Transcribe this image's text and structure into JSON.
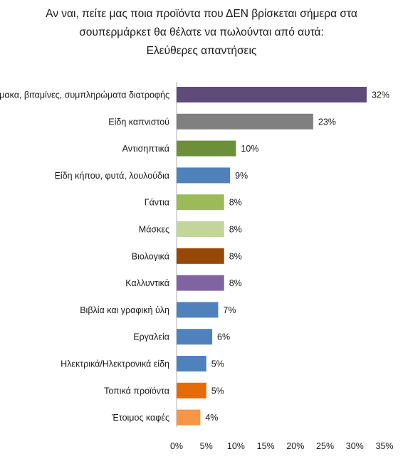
{
  "chart_data": {
    "type": "bar",
    "orientation": "horizontal",
    "title_lines": [
      "Αν ναι, πείτε μας ποια προϊόντα που ΔΕΝ βρίσκεται σήμερα στα",
      "σουπερμάρκετ θα θέλατε να πωλούνται από αυτά:",
      "Ελεύθερες απαντήσεις"
    ],
    "categories": [
      "Φάρμακα, βιταμίνες, συμπληρώματα διατροφής",
      "Είδη καπνιστού",
      "Αντισηπτικά",
      "Είδη κήπου, φυτά, λουλούδια",
      "Γάντια",
      "Μάσκες",
      "Βιολογικά",
      "Καλλυντικά",
      "Βιβλία και γραφική ύλη",
      "Εργαλεία",
      "Ηλεκτρικά/Ηλεκτρονικά είδη",
      "Τοπικά προϊόντα",
      "Έτοιμος καφές"
    ],
    "values": [
      32,
      23,
      10,
      9,
      8,
      8,
      8,
      8,
      7,
      6,
      5,
      5,
      4
    ],
    "value_labels": [
      "32%",
      "23%",
      "10%",
      "9%",
      "8%",
      "8%",
      "8%",
      "8%",
      "7%",
      "6%",
      "5%",
      "5%",
      "4%"
    ],
    "colors": [
      "#5f4b7a",
      "#808080",
      "#6e8f3a",
      "#4f81bd",
      "#9bbb59",
      "#c2d69b",
      "#974706",
      "#8064a2",
      "#4f81bd",
      "#4f81bd",
      "#4f81bd",
      "#e36c09",
      "#f79646"
    ],
    "xlim": [
      0,
      35
    ],
    "xticks": [
      0,
      5,
      10,
      15,
      20,
      25,
      30,
      35
    ],
    "xtick_labels": [
      "0%",
      "5%",
      "10%",
      "15%",
      "20%",
      "25%",
      "30%",
      "35%"
    ],
    "grid": false,
    "legend": "none"
  }
}
